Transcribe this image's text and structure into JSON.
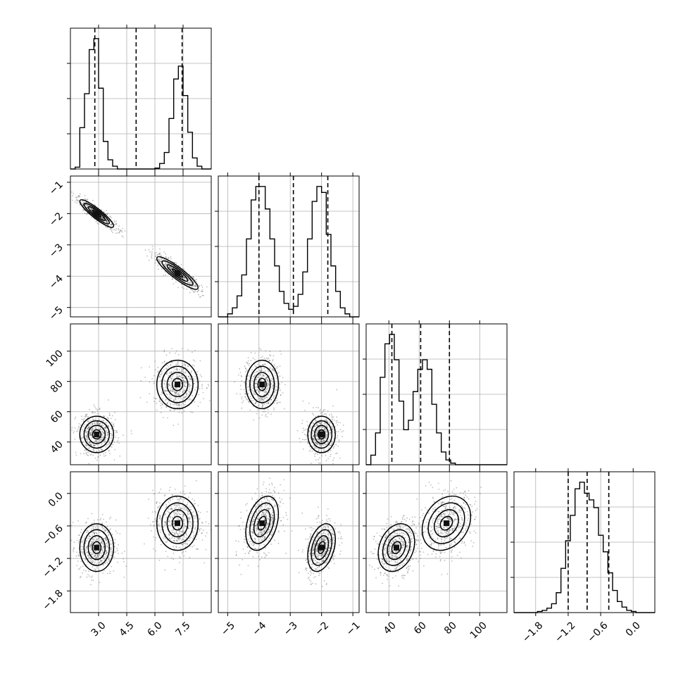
{
  "chart_data": {
    "type": "corner",
    "title": "",
    "n_params": 4,
    "axis_labels": [
      "",
      "",
      "",
      ""
    ],
    "ranges": [
      [
        1.5,
        9.0
      ],
      [
        -5.3,
        -0.8
      ],
      [
        25,
        118
      ],
      [
        -2.2,
        0.4
      ]
    ],
    "ticks": [
      [
        3.0,
        4.5,
        6.0,
        7.5
      ],
      [
        -5,
        -4,
        -3,
        -2,
        -1
      ],
      [
        40,
        60,
        80,
        100
      ],
      [
        -1.8,
        -1.2,
        -0.6,
        0.0
      ]
    ],
    "tick_labels": [
      [
        "3.0",
        "4.5",
        "6.0",
        "7.5"
      ],
      [
        "−5",
        "−4",
        "−3",
        "−2",
        "−1"
      ],
      [
        "40",
        "60",
        "80",
        "100"
      ],
      [
        "−1.8",
        "−1.2",
        "−0.6",
        "0.0"
      ]
    ],
    "quantiles": [
      [
        2.8,
        5.0,
        7.45
      ],
      [
        -4.0,
        -2.9,
        -1.8
      ],
      [
        42,
        61,
        80
      ],
      [
        -1.2,
        -0.85,
        -0.45
      ]
    ],
    "histograms": [
      {
        "counts": [
          0,
          2,
          45,
          82,
          130,
          142,
          88,
          30,
          10,
          3,
          0,
          0,
          0,
          0,
          0,
          0,
          0,
          0,
          1,
          6,
          18,
          55,
          98,
          112,
          80,
          40,
          12,
          3,
          0,
          0
        ]
      },
      {
        "counts": [
          0,
          0,
          2,
          6,
          14,
          28,
          52,
          78,
          87,
          87,
          72,
          52,
          34,
          17,
          9,
          5,
          7,
          15,
          30,
          52,
          77,
          87,
          83,
          55,
          34,
          17,
          6,
          2,
          0,
          0
        ]
      },
      {
        "counts": [
          0,
          6,
          20,
          55,
          76,
          82,
          66,
          40,
          22,
          28,
          46,
          60,
          66,
          60,
          38,
          20,
          8,
          3,
          1,
          0,
          0,
          0,
          0,
          0,
          0,
          0,
          0,
          0,
          0,
          0
        ]
      },
      {
        "counts": [
          0,
          0,
          0,
          0,
          0,
          1,
          2,
          4,
          8,
          18,
          40,
          65,
          88,
          112,
          118,
          108,
          102,
          95,
          70,
          55,
          36,
          20,
          10,
          5,
          2,
          1,
          0,
          0,
          0,
          0
        ]
      }
    ],
    "clusters": [
      {
        "mean": [
          2.9,
          -2.0,
          45.0,
          -1.0
        ],
        "sd": [
          0.45,
          0.22,
          6.0,
          0.22
        ],
        "corr01": -0.9
      },
      {
        "mean": [
          7.2,
          -3.9,
          78.0,
          -0.55
        ],
        "sd": [
          0.55,
          0.26,
          8.0,
          0.25
        ],
        "corr01": -0.9
      }
    ],
    "grid": true,
    "legend": "none"
  }
}
